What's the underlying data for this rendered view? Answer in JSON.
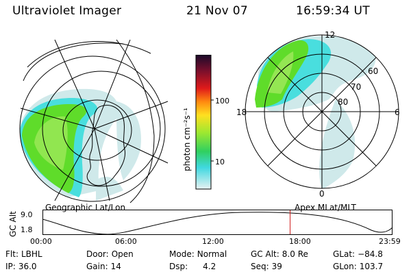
{
  "header": {
    "instrument": "Ultraviolet Imager",
    "date": "21 Nov 07",
    "time": "16:59:34 UT"
  },
  "colors": {
    "plasma_green": "#5fdc2a",
    "plasma_light_green": "#9ee85a",
    "plasma_cyan": "#49dede",
    "plasma_pale": "#cfe9ea",
    "marker_red": "#d02020"
  },
  "geo_map": {
    "caption": "Geographic Lat/Lon"
  },
  "colorbar": {
    "unit_label": "photon cm⁻²s⁻¹",
    "ticks": [
      "100",
      "10"
    ],
    "scale": "log"
  },
  "mag_map": {
    "caption": "Apex MLat/MLT",
    "mlt_labels": {
      "top": "12",
      "right": "6",
      "left": "18",
      "bottom": "0"
    },
    "lat_labels": [
      "60",
      "70",
      "80"
    ]
  },
  "orbit": {
    "ylabel": "GC Alt",
    "yticks": [
      "9.0",
      "1.8"
    ],
    "xticks": [
      "00:00",
      "06:00",
      "12:00",
      "18:00",
      "23:59"
    ],
    "current_time_fraction": 0.7083
  },
  "status": {
    "filter_label": "Flt:",
    "filter": "LBHL",
    "ip_label": "IP:",
    "ip": "36.0",
    "door_label": "Door:",
    "door": "Open",
    "gain_label": "Gain:",
    "gain": "14",
    "mode_label": "Mode:",
    "mode": "Normal",
    "dsp_label": "Dsp:",
    "dsp": "4.2",
    "gcalt_label": "GC Alt:",
    "gcalt": "8.0 Re",
    "seq_label": "Seq:",
    "seq": "39",
    "glat_label": "GLat:",
    "glat": "−84.8",
    "glon_label": "GLon:",
    "glon": "103.7"
  }
}
